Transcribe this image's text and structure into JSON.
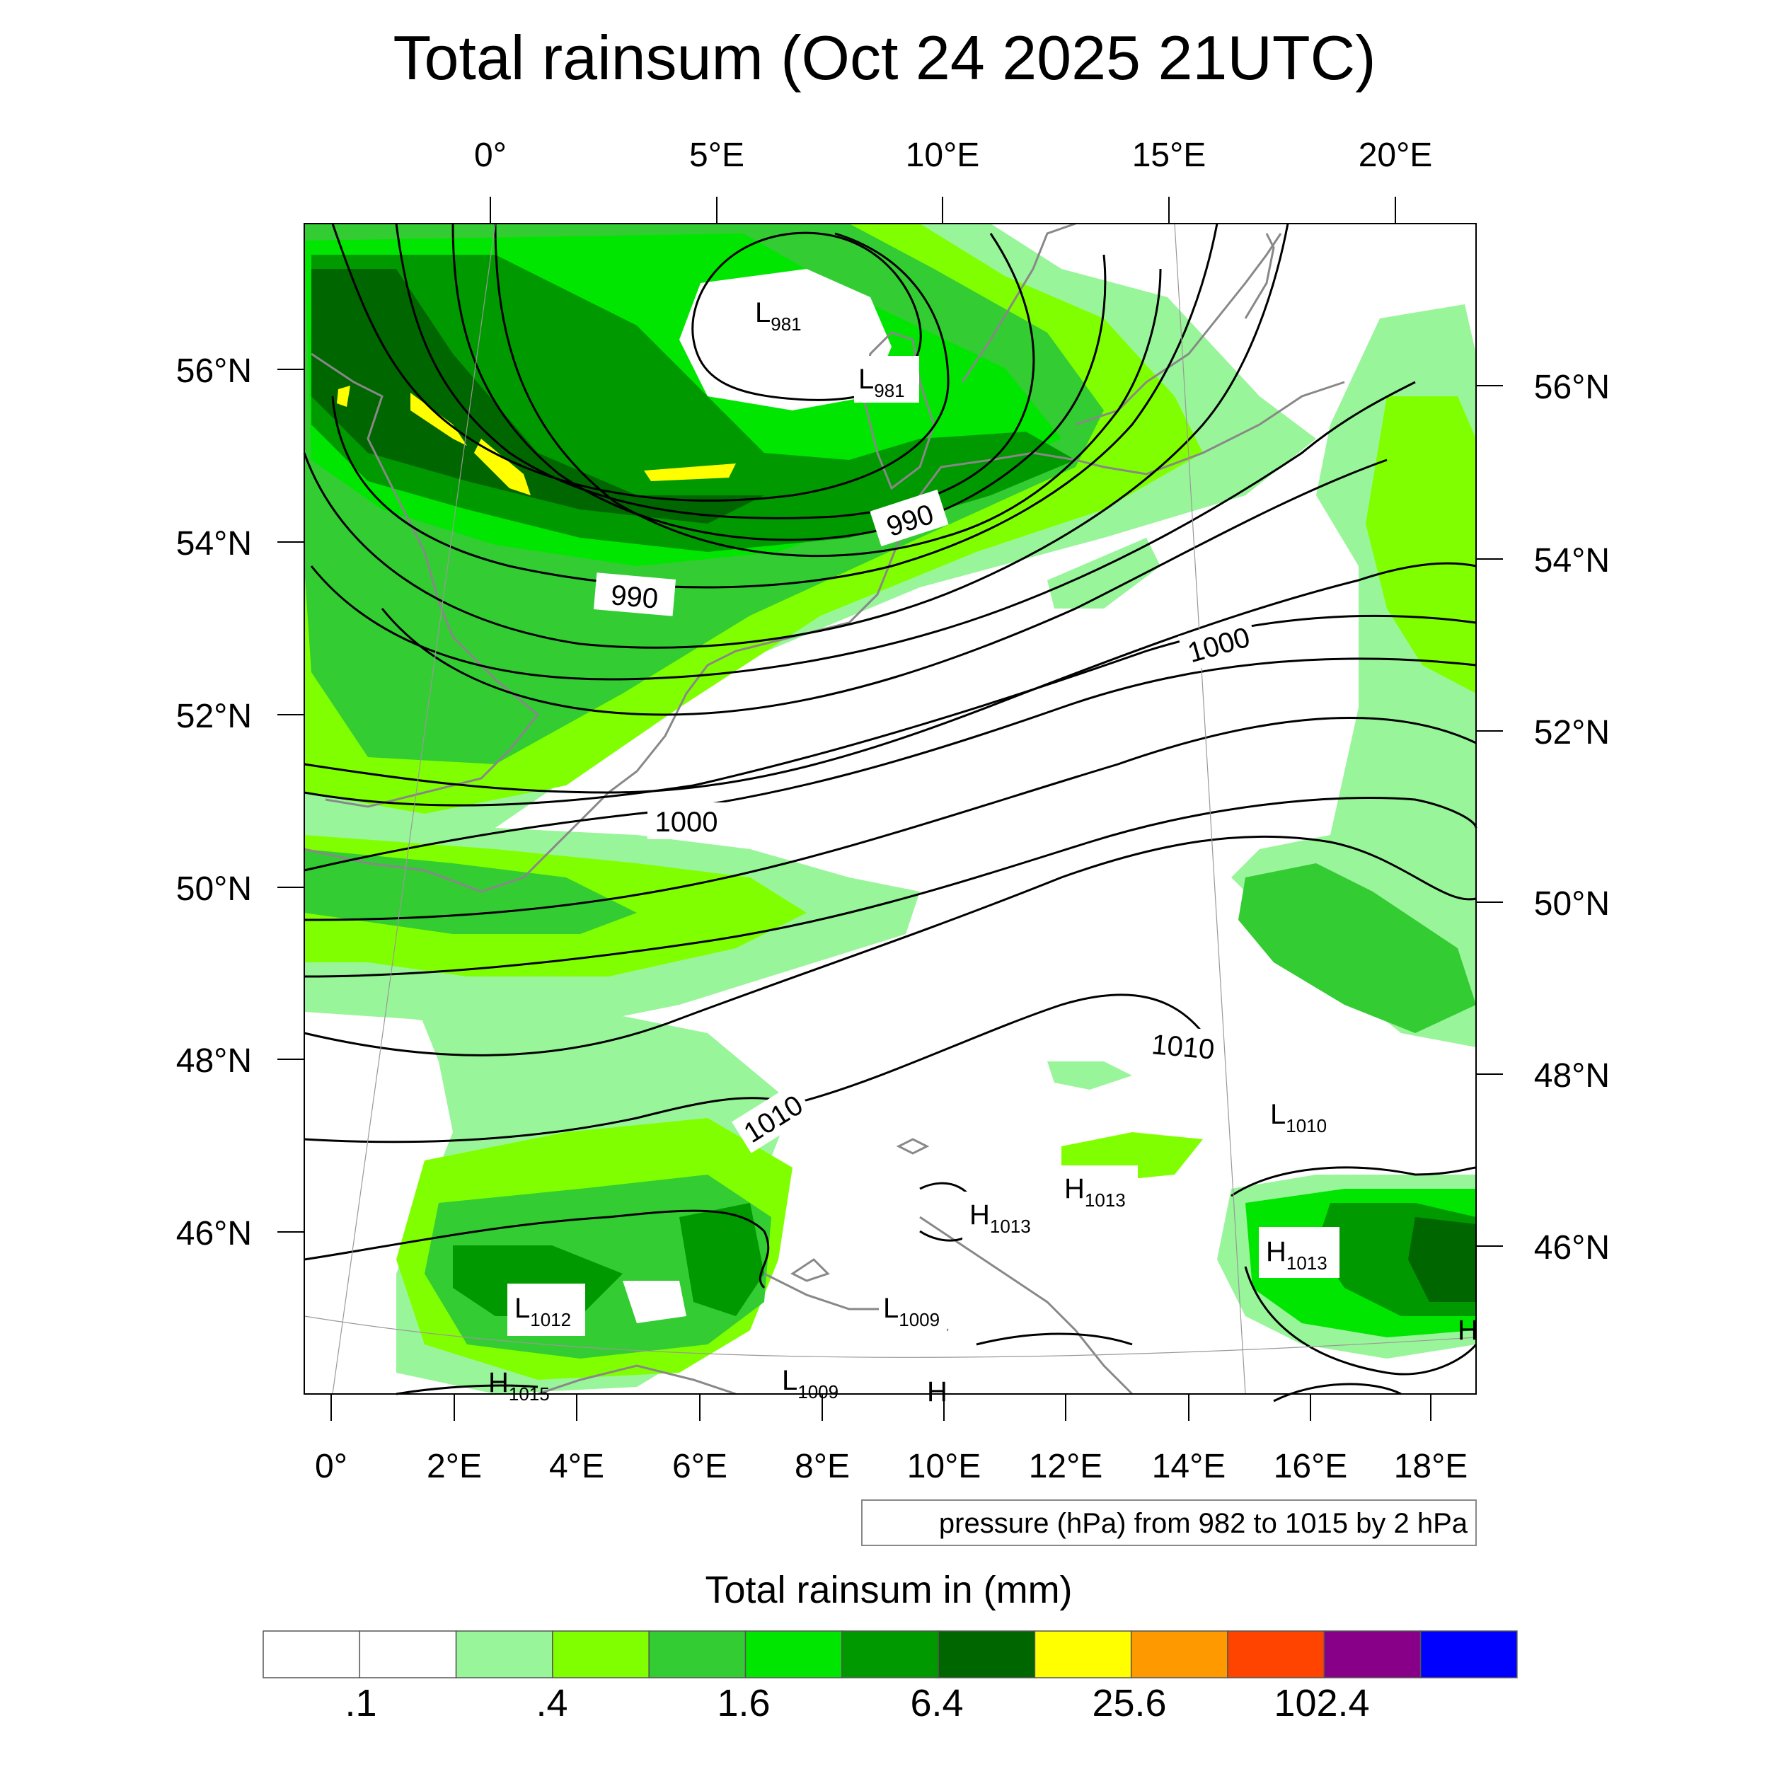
{
  "title": "Total rainsum (Oct 24 2025 21UTC)",
  "top_lon_labels": [
    "0°",
    "5°E",
    "10°E",
    "15°E",
    "20°E"
  ],
  "left_lat_labels": [
    "56°N",
    "54°N",
    "52°N",
    "50°N",
    "48°N",
    "46°N"
  ],
  "right_lat_labels": [
    "56°N",
    "54°N",
    "52°N",
    "50°N",
    "48°N",
    "46°N"
  ],
  "bottom_lon_labels": [
    "0°",
    "2°E",
    "4°E",
    "6°E",
    "8°E",
    "10°E",
    "12°E",
    "14°E",
    "16°E",
    "18°E"
  ],
  "contour_info": "pressure (hPa) from 982 to 1015 by 2 hPa",
  "isobar_labels": [
    "990",
    "990",
    "1000",
    "1000",
    "1010",
    "1010"
  ],
  "pressure_centers": [
    {
      "type": "L",
      "value": "981"
    },
    {
      "type": "L",
      "value": "981"
    },
    {
      "type": "L",
      "value": "1012"
    },
    {
      "type": "H",
      "value": "1015"
    },
    {
      "type": "L",
      "value": "1009"
    },
    {
      "type": "L",
      "value": "1009"
    },
    {
      "type": "H",
      "value": "1013"
    },
    {
      "type": "H",
      "value": "1013"
    },
    {
      "type": "H",
      "value": "1013"
    },
    {
      "type": "L",
      "value": "1010"
    }
  ],
  "colorbar": {
    "title": "Total rainsum in (mm)",
    "colors": [
      "#ffffff",
      "#ffffff",
      "#99f599",
      "#80ff00",
      "#33cc33",
      "#00e600",
      "#009900",
      "#006600",
      "#ffff00",
      "#ff9900",
      "#ff4400",
      "#880088",
      "#0000ff"
    ],
    "labels": [
      ".1",
      ".4",
      "1.6",
      "6.4",
      "25.6",
      "102.4"
    ]
  }
}
